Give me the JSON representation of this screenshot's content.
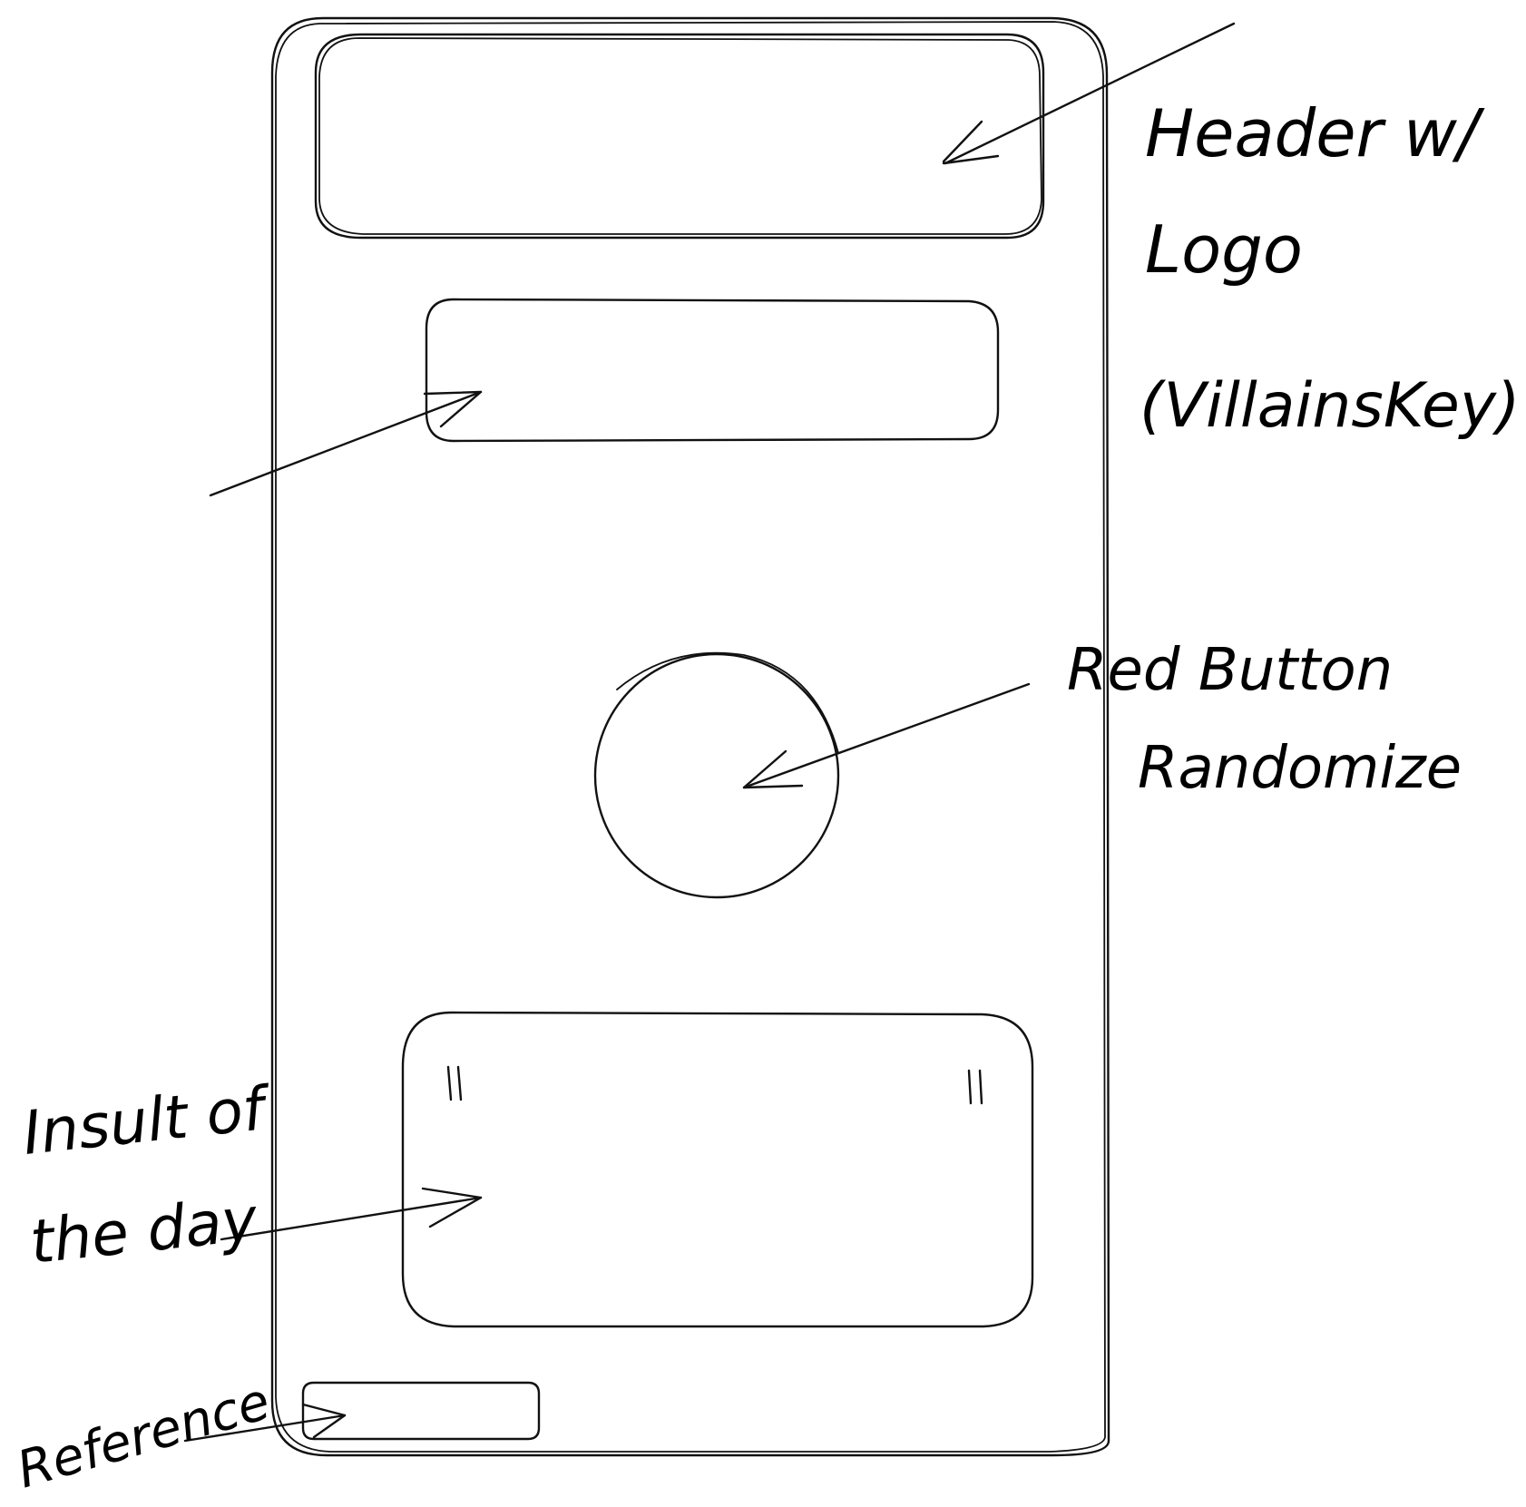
{
  "annotations": {
    "header": {
      "line1": "Header w/",
      "line2": "Logo",
      "line3": "(VillainsKey)"
    },
    "button": {
      "line1": "Red Button",
      "line2": "Randomize"
    },
    "insult": {
      "line1": "Insult of",
      "line2": "the day"
    },
    "reference": {
      "line1": "Reference"
    }
  },
  "quote_card": {
    "open_mark": "\"",
    "close_mark": "\""
  },
  "colors": {
    "ink": "#111111",
    "paper": "#ffffff"
  }
}
